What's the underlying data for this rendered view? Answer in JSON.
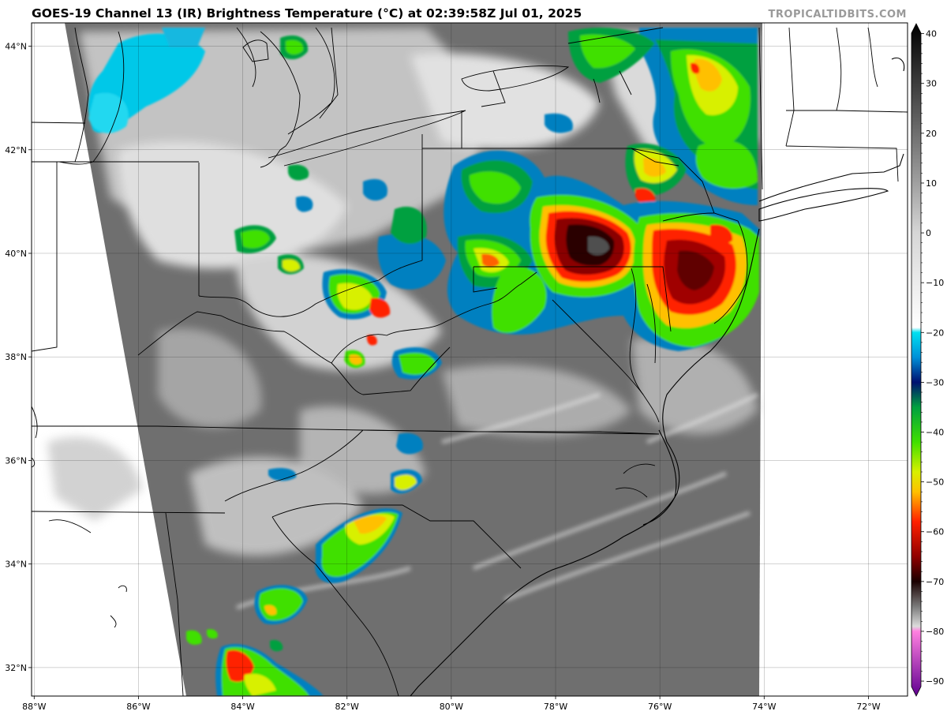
{
  "header": {
    "title": "GOES-19 Channel 13 (IR) Brightness Temperature (°C) at 02:39:58Z Jul 01, 2025",
    "credit": "TROPICALTIDBITS.COM"
  },
  "map": {
    "lon_range": [
      -88.05,
      -71.25
    ],
    "lat_range": [
      31.45,
      44.45
    ],
    "lon_ticks": [
      {
        "value": -88,
        "label": "88°W"
      },
      {
        "value": -86,
        "label": "86°W"
      },
      {
        "value": -84,
        "label": "84°W"
      },
      {
        "value": -82,
        "label": "82°W"
      },
      {
        "value": -80,
        "label": "80°W"
      },
      {
        "value": -78,
        "label": "78°W"
      },
      {
        "value": -76,
        "label": "76°W"
      },
      {
        "value": -74,
        "label": "74°W"
      },
      {
        "value": -72,
        "label": "72°W"
      }
    ],
    "lat_ticks": [
      {
        "value": 32,
        "label": "32°N"
      },
      {
        "value": 34,
        "label": "34°N"
      },
      {
        "value": 36,
        "label": "36°N"
      },
      {
        "value": 38,
        "label": "38°N"
      },
      {
        "value": 40,
        "label": "40°N"
      },
      {
        "value": 42,
        "label": "42°N"
      },
      {
        "value": 44,
        "label": "44°N"
      }
    ],
    "grid": true
  },
  "colorbar": {
    "range": [
      -93,
      42
    ],
    "ticks": [
      {
        "value": 40,
        "label": "40"
      },
      {
        "value": 30,
        "label": "30"
      },
      {
        "value": 20,
        "label": "20"
      },
      {
        "value": 10,
        "label": "10"
      },
      {
        "value": 0,
        "label": "0"
      },
      {
        "value": -10,
        "label": "−10"
      },
      {
        "value": -20,
        "label": "−20"
      },
      {
        "value": -30,
        "label": "−30"
      },
      {
        "value": -40,
        "label": "−40"
      },
      {
        "value": -50,
        "label": "−50"
      },
      {
        "value": -60,
        "label": "−60"
      },
      {
        "value": -70,
        "label": "−70"
      },
      {
        "value": -80,
        "label": "−80"
      },
      {
        "value": -90,
        "label": "−90"
      }
    ],
    "stops": [
      {
        "v": 42,
        "c": "#000000"
      },
      {
        "v": 30,
        "c": "#3c3c3c"
      },
      {
        "v": 20,
        "c": "#6e6e6e"
      },
      {
        "v": 10,
        "c": "#a0a0a0"
      },
      {
        "v": 0,
        "c": "#d6d6d6"
      },
      {
        "v": -19,
        "c": "#ffffff"
      },
      {
        "v": -20,
        "c": "#00e0f0"
      },
      {
        "v": -25,
        "c": "#0090d8"
      },
      {
        "v": -30,
        "c": "#001070"
      },
      {
        "v": -35,
        "c": "#00a040"
      },
      {
        "v": -42,
        "c": "#40e000"
      },
      {
        "v": -48,
        "c": "#d8f000"
      },
      {
        "v": -52,
        "c": "#ffc000"
      },
      {
        "v": -58,
        "c": "#ff2000"
      },
      {
        "v": -65,
        "c": "#900000"
      },
      {
        "v": -70,
        "c": "#1a0000"
      },
      {
        "v": -75,
        "c": "#7a7a7a"
      },
      {
        "v": -79,
        "c": "#dcdcdc"
      },
      {
        "v": -80,
        "c": "#ff80e0"
      },
      {
        "v": -93,
        "c": "#600090"
      }
    ]
  }
}
